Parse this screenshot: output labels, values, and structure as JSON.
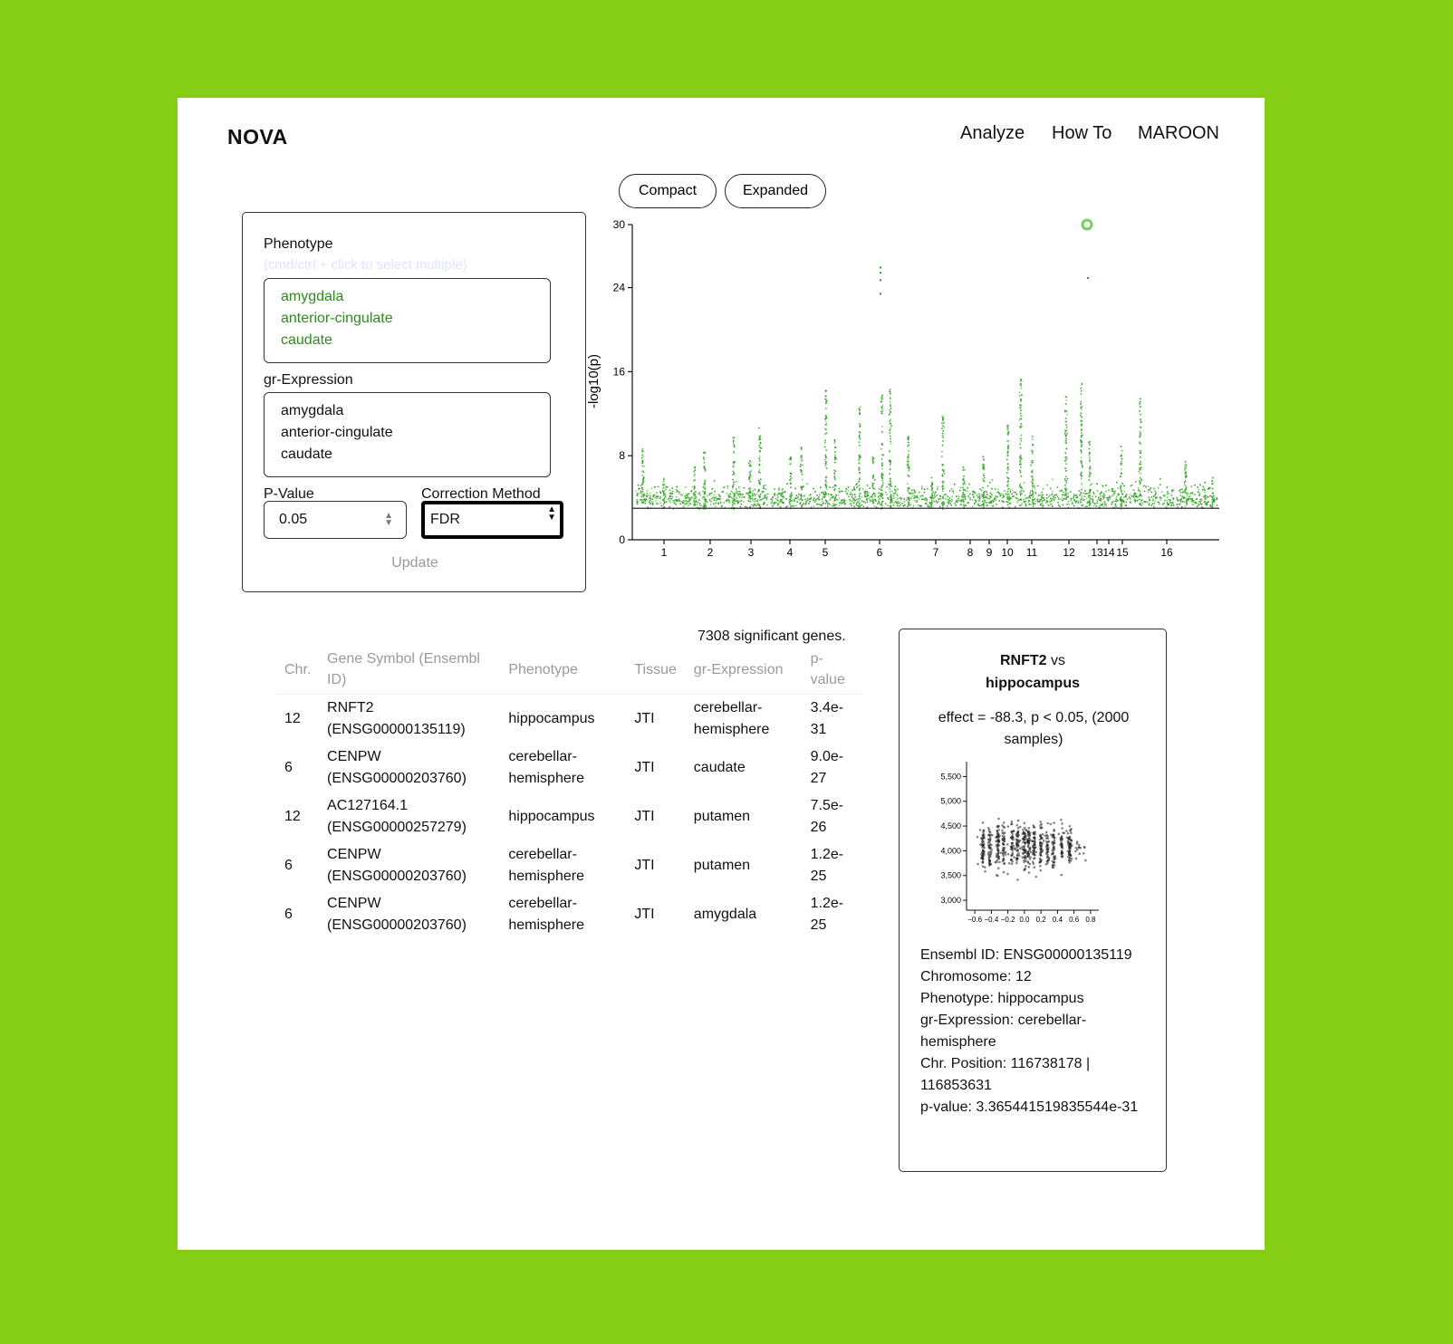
{
  "header": {
    "brand": "NOVA",
    "nav": [
      "Analyze",
      "How To",
      "MAROON"
    ]
  },
  "view_toggle": {
    "compact": "Compact",
    "expanded": "Expanded"
  },
  "filters": {
    "phenotype_label": "Phenotype",
    "phenotype_hint": "(cmd/ctrl + click to select multiple)",
    "phenotype_options": [
      "amygdala",
      "anterior-cingulate",
      "caudate"
    ],
    "expression_label": "gr-Expression",
    "expression_options": [
      "amygdala",
      "anterior-cingulate",
      "caudate"
    ],
    "pvalue_label": "P-Value",
    "pvalue_value": "0.05",
    "method_label": "Correction Method",
    "method_value": "FDR",
    "update_label": "Update"
  },
  "manhattan": {
    "ylabel": "-log10(p)",
    "y_ticks": [
      0,
      8,
      16,
      24,
      30
    ],
    "chromosomes": [
      "1",
      "2",
      "3",
      "4",
      "5",
      "6",
      "7",
      "8",
      "9",
      "10",
      "11",
      "12",
      "13",
      "14",
      "15",
      "16"
    ],
    "threshold": 3.0,
    "highlight_value": 30,
    "point_color": "#2f9a25",
    "highlight_color": "#6fd05e"
  },
  "chart_data": [
    {
      "type": "scatter",
      "title": "",
      "xlabel": "",
      "ylabel": "-log10(p)",
      "ylim": [
        0,
        30
      ],
      "x_categories": [
        "1",
        "2",
        "3",
        "4",
        "5",
        "6",
        "7",
        "8",
        "9",
        "10",
        "11",
        "12",
        "13",
        "14",
        "15",
        "16"
      ],
      "notable_points": [
        {
          "chr": "12",
          "y": 30
        },
        {
          "chr": "12",
          "y": 25
        },
        {
          "chr": "6",
          "y": 26
        },
        {
          "chr": "6",
          "y": 25.5
        },
        {
          "chr": "6",
          "y": 24.8
        },
        {
          "chr": "6",
          "y": 23.5
        }
      ],
      "threshold_line": 3.0
    },
    {
      "type": "scatter",
      "title": "",
      "ylim": [
        2800,
        5800
      ],
      "y_ticks": [
        "3,000",
        "3,500",
        "4,000",
        "4,500",
        "5,000",
        "5,500"
      ],
      "xlim": [
        -0.7,
        0.9
      ],
      "x_ticks": [
        "−0.6",
        "−0.4",
        "−0.2",
        "0.0",
        "0.2",
        "0.4",
        "0.6",
        "0.8"
      ],
      "approx_n": 2000,
      "center_y": 4100,
      "spread_y": 450
    }
  ],
  "summary": {
    "significant_text": "7308 significant genes."
  },
  "table": {
    "headers": [
      "Chr.",
      "Gene Symbol (Ensembl ID)",
      "Phenotype",
      "Tissue",
      "gr-Expression",
      "p-value"
    ],
    "rows": [
      {
        "chr": "12",
        "gene": "RNFT2 (ENSG00000135119)",
        "phenotype": "hippocampus",
        "tissue": "JTI",
        "expression": "cerebellar-hemisphere",
        "pvalue": "3.4e-31"
      },
      {
        "chr": "6",
        "gene": "CENPW (ENSG00000203760)",
        "phenotype": "cerebellar-hemisphere",
        "tissue": "JTI",
        "expression": "caudate",
        "pvalue": "9.0e-27"
      },
      {
        "chr": "12",
        "gene": "AC127164.1 (ENSG00000257279)",
        "phenotype": "hippocampus",
        "tissue": "JTI",
        "expression": "putamen",
        "pvalue": "7.5e-26"
      },
      {
        "chr": "6",
        "gene": "CENPW (ENSG00000203760)",
        "phenotype": "cerebellar-hemisphere",
        "tissue": "JTI",
        "expression": "putamen",
        "pvalue": "1.2e-25"
      },
      {
        "chr": "6",
        "gene": "CENPW (ENSG00000203760)",
        "phenotype": "cerebellar-hemisphere",
        "tissue": "JTI",
        "expression": "amygdala",
        "pvalue": "1.2e-25"
      }
    ]
  },
  "detail": {
    "gene": "RNFT2",
    "vs": "vs",
    "tissue": "hippocampus",
    "effect": "effect = -88.3, p < 0.05, (2000 samples)",
    "ensembl": "Ensembl ID: ENSG00000135119",
    "chromosome": "Chromosome: 12",
    "phenotype": "Phenotype: hippocampus",
    "expression": "gr-Expression: cerebellar-hemisphere",
    "position": "Chr. Position: 116738178 | 116853631",
    "pvalue": "p-value: 3.365441519835544e-31"
  }
}
